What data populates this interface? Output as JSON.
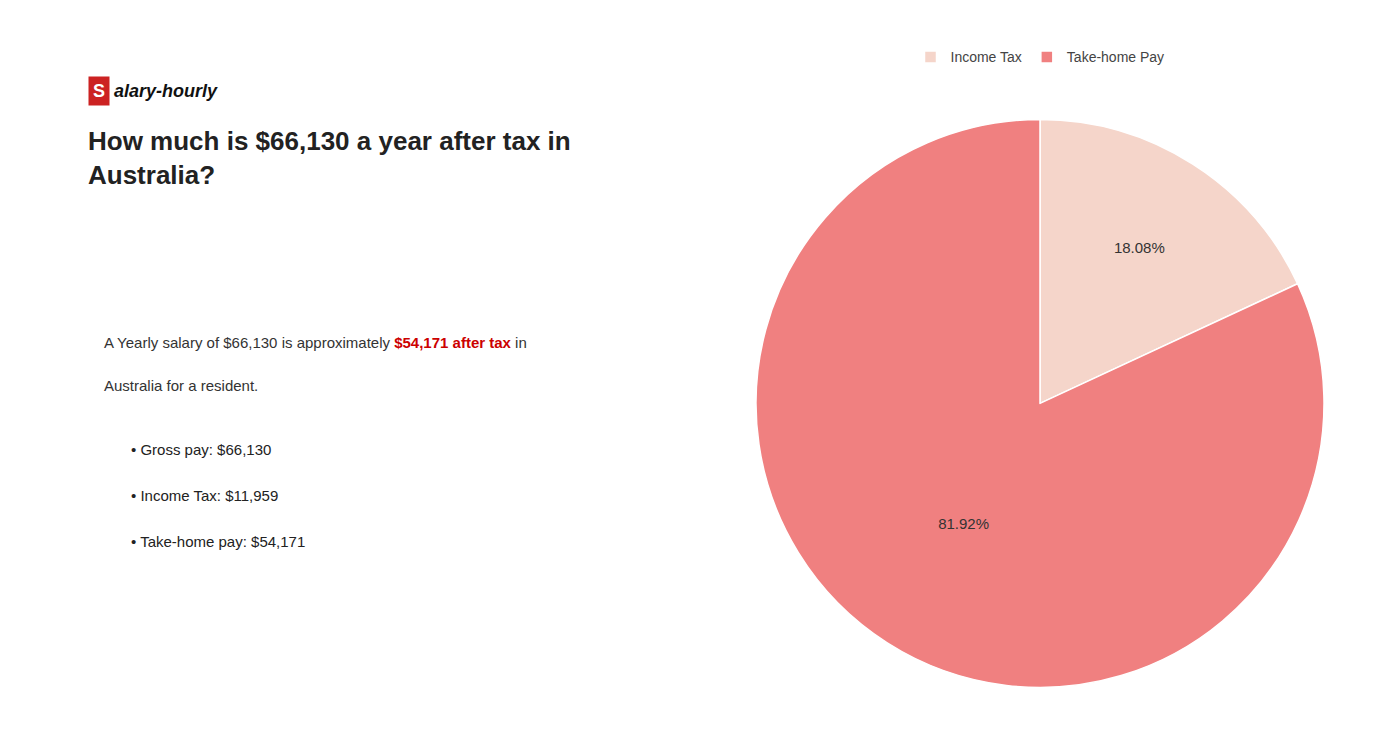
{
  "chart_data": {
    "type": "pie",
    "title": "How much is $66,130 a year after tax in\nAustralia?",
    "categories": [
      "Income Tax",
      "Take-home Pay"
    ],
    "values": [
      18.08,
      81.92
    ],
    "value_labels": [
      "18.08%",
      "81.92%"
    ],
    "colors": [
      "#f5d5ca",
      "#f08080"
    ],
    "data_labels": true,
    "legend": "top",
    "annotations": [
      {
        "text": "S",
        "color": "#cc2222"
      },
      {
        "text": "alary-hourly"
      },
      {
        "text": "A Yearly salary of $66,130 is approximately "
      },
      {
        "text": "$54,171 after tax",
        "color": "#cc0000"
      },
      {
        "text": " in"
      },
      {
        "text": "Australia for a resident."
      },
      {
        "text": "• Gross pay: $66,130"
      },
      {
        "text": "• Income Tax: $11,959"
      },
      {
        "text": "• Take-home pay: $54,171"
      }
    ]
  }
}
